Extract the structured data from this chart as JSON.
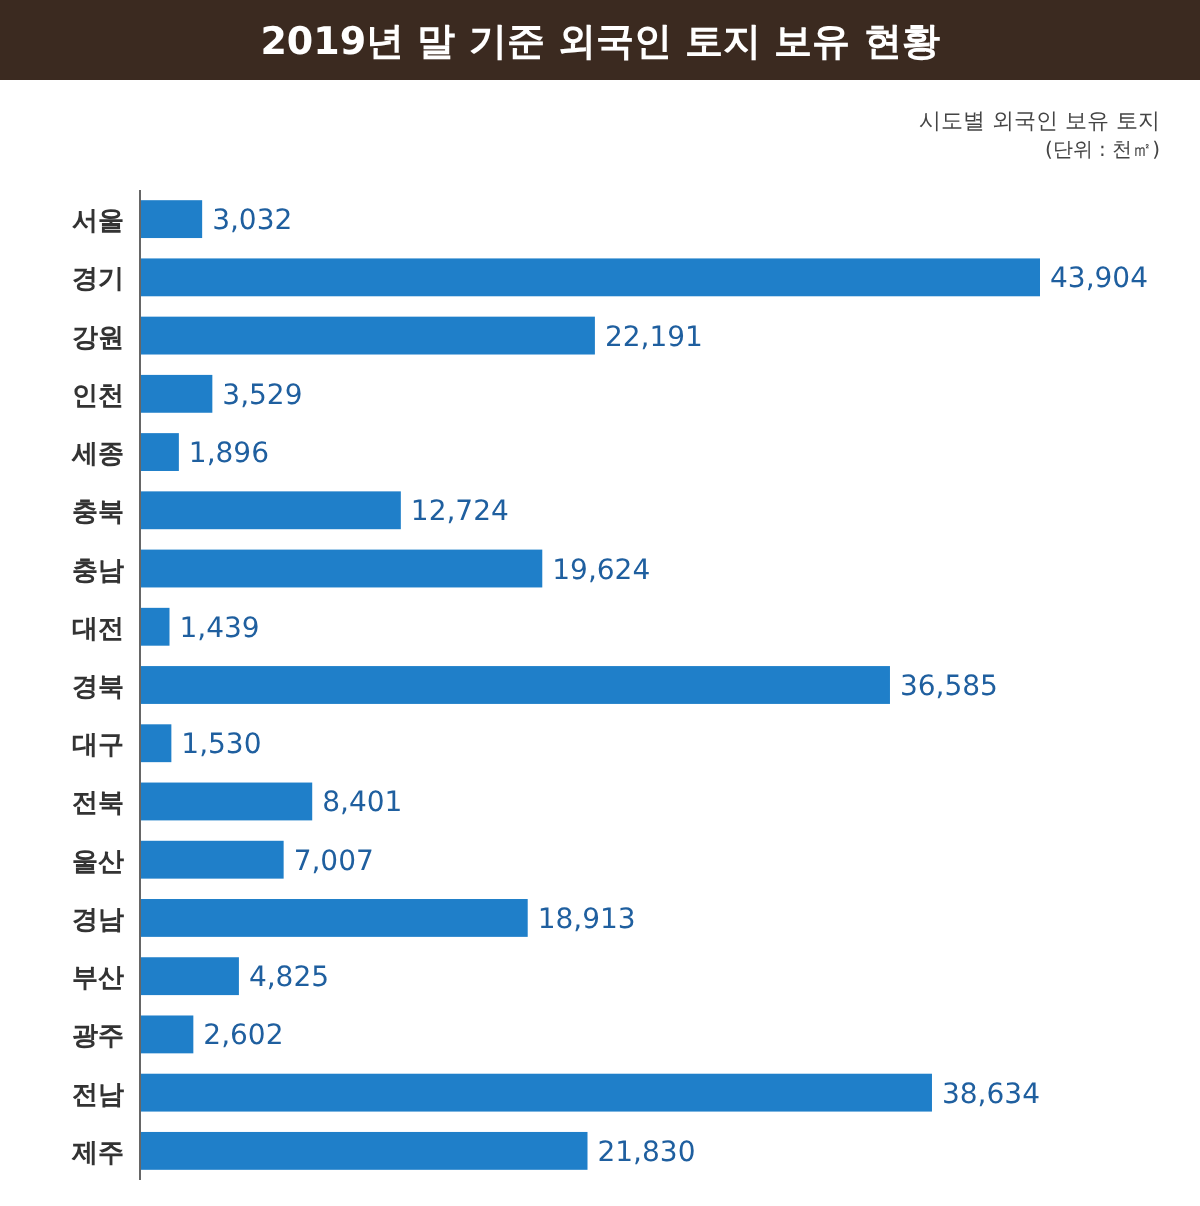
{
  "chart_data": {
    "type": "bar",
    "orientation": "horizontal",
    "title": "2019년 말 기준 외국인 토지 보유 현황",
    "annotations": [
      "시도별 외국인 보유 토지",
      "(단위 : 천㎡)"
    ],
    "categories": [
      "서울",
      "경기",
      "강원",
      "인천",
      "세종",
      "충북",
      "충남",
      "대전",
      "경북",
      "대구",
      "전북",
      "울산",
      "경남",
      "부산",
      "광주",
      "전남",
      "제주"
    ],
    "values": [
      3032,
      43904,
      22191,
      3529,
      1896,
      12724,
      19624,
      1439,
      36585,
      1530,
      8401,
      7007,
      18913,
      4825,
      2602,
      38634,
      21830
    ],
    "value_labels": [
      "3,032",
      "43,904",
      "22,191",
      "3,529",
      "1,896",
      "12,724",
      "19,624",
      "1,439",
      "36,585",
      "1,530",
      "8,401",
      "7,007",
      "18,913",
      "4,825",
      "2,602",
      "38,634",
      "21,830"
    ],
    "color": "#1f7fc9"
  }
}
